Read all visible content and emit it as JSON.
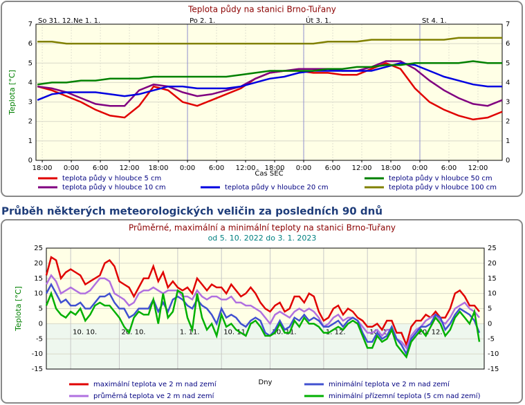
{
  "heading": "Průběh některých meteorologických veličin za posledních 90 dnů",
  "chart_data": [
    {
      "type": "line",
      "title": "Teplota půdy na stanici Brno-Tuřany",
      "xlabel": "Čas SEČ",
      "ylabel": "Teplota [°C]",
      "xlim": [
        -7.3,
        89
      ],
      "ylim": [
        0,
        7
      ],
      "yticks": [
        0,
        1,
        2,
        3,
        4,
        5,
        6,
        7
      ],
      "grid": true,
      "xticks": [
        {
          "value": -6,
          "label": "18:00"
        },
        {
          "value": 0,
          "label": "0:00"
        },
        {
          "value": 6,
          "label": "6:00"
        },
        {
          "value": 12,
          "label": "12:00"
        },
        {
          "value": 18,
          "label": "18:00"
        },
        {
          "value": 24,
          "label": "0:00"
        },
        {
          "value": 30,
          "label": "6:00"
        },
        {
          "value": 36,
          "label": "12:00"
        },
        {
          "value": 42,
          "label": "18:00"
        },
        {
          "value": 48,
          "label": "0:00"
        },
        {
          "value": 54,
          "label": "6:00"
        },
        {
          "value": 60,
          "label": "12:00"
        },
        {
          "value": 66,
          "label": "18:00"
        },
        {
          "value": 72,
          "label": "0:00"
        },
        {
          "value": 78,
          "label": "6:00"
        },
        {
          "value": 84,
          "label": "12:00"
        }
      ],
      "day_labels": [
        {
          "x": -7.3,
          "label": "So 31. 12."
        },
        {
          "x": 0,
          "label": "Ne 1. 1."
        },
        {
          "x": 24,
          "label": "Po 2. 1."
        },
        {
          "x": 48,
          "label": "Út 3. 1."
        },
        {
          "x": 72,
          "label": "St 4. 1."
        }
      ],
      "x": [
        -7,
        -4,
        -1,
        2,
        5,
        8,
        11,
        14,
        17,
        20,
        23,
        26,
        29,
        32,
        35,
        38,
        41,
        44,
        47,
        50,
        53,
        56,
        59,
        62,
        65,
        68,
        71,
        74,
        77,
        80,
        83,
        86,
        89
      ],
      "series": [
        {
          "name": "teplota půdy v hloubce 5 cm",
          "color": "#e00000",
          "values": [
            3.8,
            3.6,
            3.3,
            3.0,
            2.6,
            2.3,
            2.2,
            2.8,
            3.8,
            3.6,
            3.0,
            2.8,
            3.1,
            3.4,
            3.7,
            4.2,
            4.5,
            4.6,
            4.6,
            4.5,
            4.5,
            4.4,
            4.4,
            4.7,
            5.0,
            4.7,
            3.7,
            3.0,
            2.6,
            2.3,
            2.1,
            2.2,
            2.5
          ]
        },
        {
          "name": "teplota půdy v hloubce 10 cm",
          "color": "#800080",
          "values": [
            3.8,
            3.7,
            3.5,
            3.2,
            2.9,
            2.8,
            2.8,
            3.6,
            3.9,
            3.8,
            3.5,
            3.3,
            3.4,
            3.6,
            3.8,
            4.2,
            4.5,
            4.6,
            4.7,
            4.7,
            4.7,
            4.6,
            4.6,
            4.8,
            5.1,
            5.1,
            4.7,
            4.1,
            3.6,
            3.2,
            2.9,
            2.8,
            3.1
          ]
        },
        {
          "name": "teplota půdy v hloubce 20 cm",
          "color": "#0000e0",
          "values": [
            3.1,
            3.4,
            3.5,
            3.5,
            3.5,
            3.4,
            3.3,
            3.4,
            3.6,
            3.8,
            3.8,
            3.7,
            3.7,
            3.7,
            3.8,
            4.0,
            4.2,
            4.3,
            4.5,
            4.6,
            4.6,
            4.6,
            4.6,
            4.6,
            4.8,
            5.0,
            4.9,
            4.6,
            4.3,
            4.1,
            3.9,
            3.8,
            3.8
          ]
        },
        {
          "name": "teplota půdy v hloubce 50 cm",
          "color": "#008000",
          "values": [
            3.9,
            4.0,
            4.0,
            4.1,
            4.1,
            4.2,
            4.2,
            4.2,
            4.3,
            4.3,
            4.3,
            4.3,
            4.3,
            4.3,
            4.4,
            4.5,
            4.6,
            4.6,
            4.6,
            4.6,
            4.7,
            4.7,
            4.8,
            4.8,
            4.9,
            4.9,
            5.0,
            5.0,
            5.0,
            5.0,
            5.1,
            5.0,
            5.0
          ]
        },
        {
          "name": "teplota půdy v hloubce 100 cm",
          "color": "#808000",
          "values": [
            6.1,
            6.1,
            6.0,
            6.0,
            6.0,
            6.0,
            6.0,
            6.0,
            6.0,
            6.0,
            6.0,
            6.0,
            6.0,
            6.0,
            6.0,
            6.0,
            6.0,
            6.0,
            6.0,
            6.0,
            6.1,
            6.1,
            6.1,
            6.2,
            6.2,
            6.2,
            6.2,
            6.2,
            6.2,
            6.3,
            6.3,
            6.3,
            6.3
          ]
        }
      ]
    },
    {
      "type": "line",
      "title": "Průměrné, maximální a minimální teploty na stanici Brno-Tuřany",
      "subtitle": "od 5. 10. 2022 do 3. 1. 2023",
      "xlabel": "Dny",
      "ylabel": "Teplota [°C]",
      "ylim": [
        -15,
        25
      ],
      "yticks": [
        -15,
        -10,
        -5,
        0,
        5,
        10,
        15,
        20,
        25
      ],
      "grid": true,
      "categories": [
        null,
        null,
        null,
        null,
        null,
        "10. 10.",
        null,
        null,
        null,
        null,
        null,
        null,
        null,
        null,
        null,
        "20. 10.",
        null,
        null,
        null,
        null,
        null,
        null,
        null,
        null,
        null,
        null,
        null,
        "1. 11.",
        null,
        null,
        null,
        null,
        null,
        null,
        null,
        null,
        "10. 11.",
        null,
        null,
        null,
        null,
        null,
        null,
        null,
        null,
        null,
        "20. 11.",
        null,
        null,
        null,
        null,
        null,
        null,
        null,
        null,
        null,
        null,
        "1. 12.",
        null,
        null,
        null,
        null,
        null,
        null,
        null,
        null,
        "10. 12.",
        null,
        null,
        null,
        null,
        null,
        null,
        null,
        null,
        null,
        "20. 12.",
        null,
        null,
        null,
        null,
        null,
        null,
        null,
        null,
        null,
        null,
        null,
        null,
        null
      ],
      "series": [
        {
          "name": "maximální teplota ve 2 m nad zemí",
          "color": "#e00000",
          "values": [
            16,
            22,
            21,
            15,
            17,
            18,
            17,
            16,
            13,
            14,
            15,
            16,
            20,
            21,
            19,
            14,
            13,
            12,
            9,
            12,
            15,
            15,
            19,
            14,
            17,
            12,
            14,
            12,
            11,
            12,
            10,
            15,
            13,
            11,
            13,
            12,
            12,
            10,
            13,
            11,
            9,
            10,
            12,
            10,
            7,
            5,
            4,
            6,
            7,
            4,
            5,
            9,
            9,
            7,
            10,
            9,
            4,
            1,
            2,
            5,
            6,
            3,
            5,
            4,
            2,
            1,
            -1,
            -1,
            0,
            -2,
            1,
            1,
            -3,
            -3,
            -7,
            -1,
            1,
            1,
            3,
            2,
            4,
            2,
            2,
            5,
            10,
            11,
            9,
            6,
            6,
            4
          ]
        },
        {
          "name": "průměrná teplota ve 2 m nad zemí",
          "color": "#b070e0",
          "values": [
            13,
            16,
            14,
            10,
            11,
            12,
            11,
            10,
            10,
            11,
            13,
            15,
            15,
            14,
            10,
            9,
            8,
            6,
            7,
            10,
            11,
            11,
            12,
            11,
            10,
            11,
            11,
            11,
            9,
            9,
            8,
            11,
            9,
            8,
            9,
            9,
            8,
            8,
            9,
            7,
            7,
            6,
            6,
            5,
            4,
            2,
            0,
            3,
            4,
            3,
            2,
            4,
            5,
            4,
            5,
            4,
            2,
            -1,
            0,
            2,
            3,
            1,
            2,
            2,
            1,
            -1,
            -3,
            -3,
            -2,
            -4,
            -2,
            -2,
            -5,
            -6,
            -8,
            -4,
            -2,
            -1,
            1,
            2,
            3,
            1,
            0,
            2,
            5,
            6,
            7,
            5,
            4,
            2
          ]
        },
        {
          "name": "minimální teplota ve 2 m nad zemí",
          "color": "#4050d0",
          "values": [
            10,
            13,
            10,
            7,
            8,
            6,
            6,
            7,
            5,
            5,
            7,
            9,
            9,
            10,
            7,
            5,
            5,
            2,
            3,
            5,
            5,
            5,
            8,
            4,
            7,
            4,
            8,
            9,
            8,
            6,
            5,
            8,
            6,
            5,
            3,
            0,
            5,
            2,
            3,
            2,
            0,
            -1,
            1,
            2,
            1,
            -3,
            -4,
            -2,
            1,
            -2,
            -1,
            2,
            1,
            3,
            1,
            2,
            1,
            -1,
            -1,
            0,
            1,
            -1,
            1,
            2,
            1,
            -3,
            -6,
            -6,
            -3,
            -5,
            -4,
            -1,
            -5,
            -7,
            -10,
            -5,
            -3,
            -1,
            -1,
            0,
            3,
            2,
            -2,
            0,
            3,
            5,
            4,
            3,
            1,
            -3
          ]
        },
        {
          "name": "minimální přízemní teplota (5 cm nad zemí)",
          "color": "#00b000",
          "values": [
            6,
            10,
            5,
            3,
            2,
            4,
            3,
            5,
            1,
            3,
            6,
            7,
            6,
            6,
            4,
            2,
            -1,
            -3,
            2,
            4,
            3,
            3,
            8,
            0,
            10,
            2,
            4,
            11,
            10,
            2,
            -2,
            10,
            2,
            -2,
            0,
            -4,
            3,
            -1,
            0,
            -2,
            -3,
            -4,
            0,
            1,
            -1,
            -4,
            -4,
            -3,
            0,
            -3,
            -3,
            1,
            -1,
            2,
            0,
            0,
            -1,
            -3,
            -3,
            -2,
            -1,
            -2,
            0,
            1,
            0,
            -4,
            -8,
            -8,
            -4,
            -6,
            -5,
            -2,
            -7,
            -9,
            -11,
            -6,
            -4,
            -2,
            -4,
            -1,
            2,
            0,
            -4,
            -2,
            2,
            4,
            2,
            0,
            4,
            -6
          ]
        }
      ]
    }
  ]
}
